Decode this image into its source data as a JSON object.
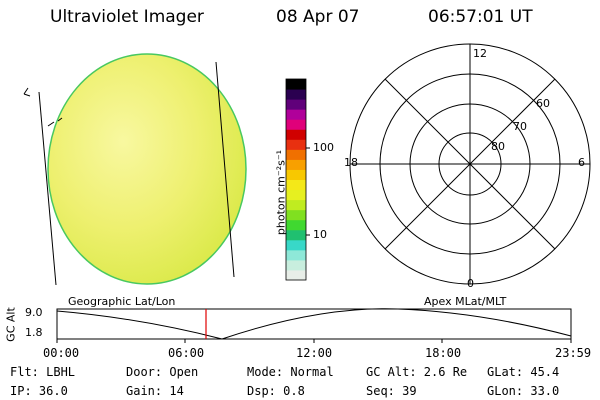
{
  "header": {
    "title": "Ultraviolet Imager",
    "date": "08 Apr 07",
    "time": "06:57:01 UT"
  },
  "colorbar": {
    "unit_label": "photon cm⁻²s⁻¹",
    "ticks": [
      "100",
      "10"
    ],
    "colors": [
      "#e8eee8",
      "#c8eede",
      "#8ee8d8",
      "#38d8c8",
      "#20c070",
      "#40d830",
      "#80e020",
      "#c0ec20",
      "#e6f020",
      "#f4e818",
      "#f8c800",
      "#f8a000",
      "#f07000",
      "#e83010",
      "#d00000",
      "#e0007a",
      "#b0009a",
      "#60007a",
      "#2a0050",
      "#000000"
    ]
  },
  "polar": {
    "ring_labels": [
      "80",
      "70",
      "60"
    ],
    "mlt_labels": {
      "top": "12",
      "left": "18",
      "right": "6",
      "bottom": "0"
    }
  },
  "panel_labels": {
    "left": "Geographic Lat/Lon",
    "right": "Apex MLat/MLT"
  },
  "alt_plot": {
    "ylabel": "GC Alt",
    "ymax": "9.0",
    "ymin": "1.8",
    "xticks": [
      "00:00",
      "06:00",
      "12:00",
      "18:00",
      "23:59"
    ],
    "current_time_hours": 6.95,
    "current_marker_color": "#e00000"
  },
  "status": {
    "filter": "Flt: LBHL",
    "door": "Door: Open",
    "mode": "Mode: Normal",
    "gc_alt": "GC Alt: 2.6 Re",
    "glat": "GLat: 45.4",
    "ip": "IP: 36.0",
    "gain": "Gain: 14",
    "dsp": "Dsp:     0.8",
    "seq": "Seq: 39",
    "glon": "GLon: 33.0"
  }
}
